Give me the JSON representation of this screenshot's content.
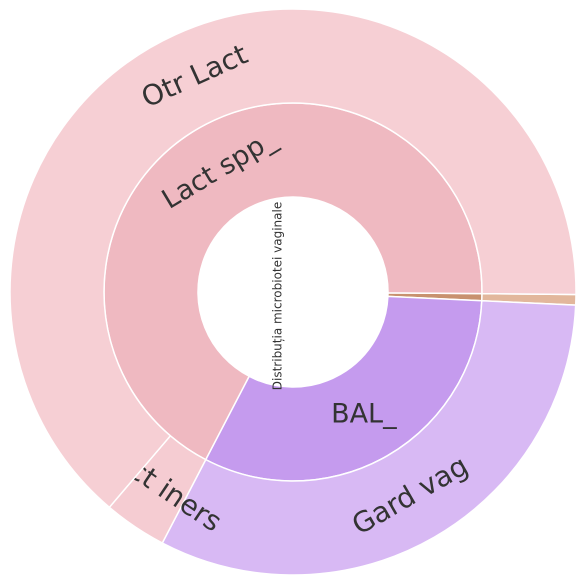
{
  "chart_data": {
    "type": "sunburst",
    "title": "Distribuția microbiotei vaginale",
    "start_angle": 0.5,
    "nodes": [
      {
        "label": null,
        "value": 0.6,
        "color": "#c8916f",
        "children": [
          {
            "label": null,
            "value": 0.6,
            "color": "#e2b79c"
          }
        ]
      },
      {
        "label": "BAL_",
        "value": 31.9,
        "color": "#c59bee",
        "children": [
          {
            "label": "Gard vag",
            "value": 31.9,
            "color": "#d8b9f4"
          }
        ]
      },
      {
        "label": "Lact spp_",
        "value": 67.5,
        "color": "#efb9c1",
        "children": [
          {
            "label": "Lact iners",
            "value": 3.6,
            "color": "#f5ccd2"
          },
          {
            "label": "Otr Lact",
            "value": 63.9,
            "color": "#f6cfd4"
          }
        ]
      }
    ]
  }
}
